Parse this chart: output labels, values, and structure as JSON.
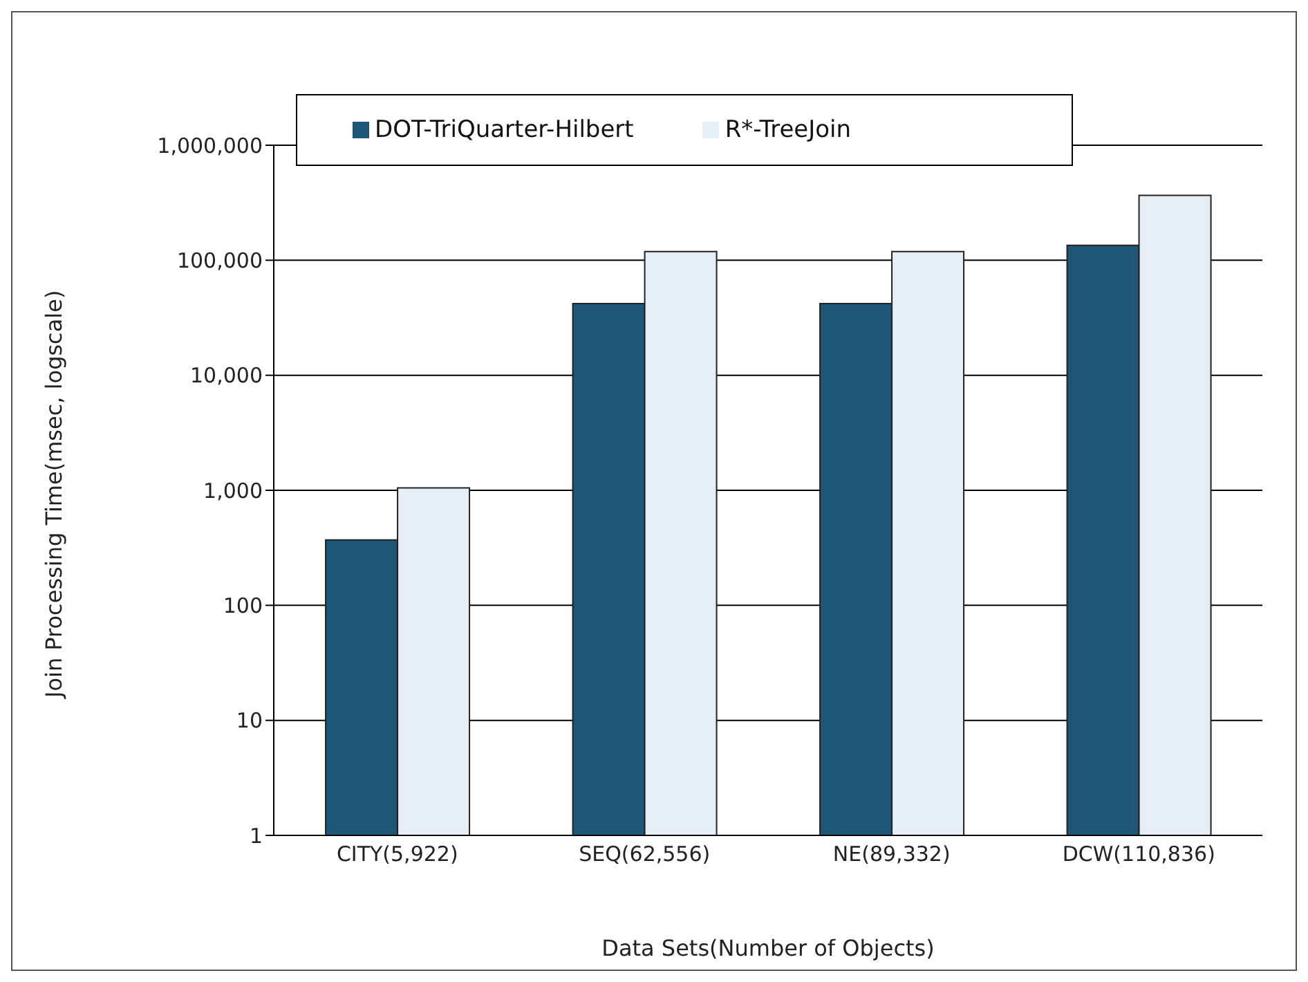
{
  "chart_data": {
    "type": "bar",
    "xlabel": "Data Sets(Number of Objects)",
    "ylabel": "Join Processing Time(msec,  logscale)",
    "categories": [
      "CITY(5,922)",
      "SEQ(62,556)",
      "NE(89,332)",
      "DCW(110,836)"
    ],
    "series": [
      {
        "name": "DOT-TriQuarter-Hilbert",
        "color": "#1d5676",
        "values": [
          370,
          42000,
          42000,
          135000
        ]
      },
      {
        "name": "R*-TreeJoin",
        "color": "#e6eef5",
        "values": [
          1050,
          119000,
          119000,
          367000
        ]
      }
    ],
    "log": "y",
    "ylim": [
      1,
      1000000
    ],
    "yticks": [
      1,
      10,
      100,
      {
        "value": 1000,
        "label": "1,000"
      },
      {
        "value": 10000,
        "label": "10,000"
      },
      {
        "value": 100000,
        "label": "100,000"
      },
      {
        "value": 1000000,
        "label": "1,000,000"
      }
    ],
    "grid": "y",
    "legend": "top left"
  }
}
